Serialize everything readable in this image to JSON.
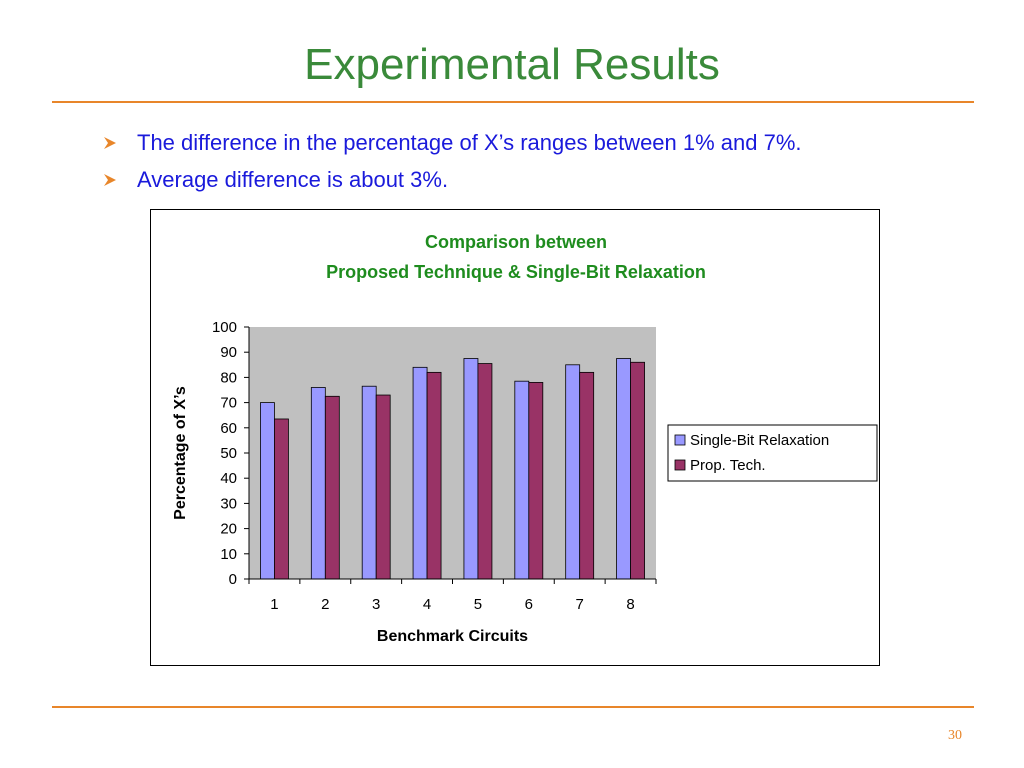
{
  "slide": {
    "title": "Experimental Results",
    "bullets": [
      "The difference in the percentage of X’s ranges between 1% and 7%.",
      "Average difference is about 3%."
    ],
    "page_number": "30",
    "colors": {
      "title": "#3a8a3a",
      "bullet_text": "#1a1adb",
      "rule": "#e8862a",
      "bullet_marker": "#e8862a"
    },
    "icons": {
      "bullet": "arrowhead-bullet-icon"
    }
  },
  "chart_data": {
    "type": "bar",
    "title_line1": "Comparison between",
    "title_line2": "Proposed Technique & Single-Bit Relaxation",
    "xlabel": "Benchmark Circuits",
    "ylabel": "Percentage of X’s",
    "categories": [
      "1",
      "2",
      "3",
      "4",
      "5",
      "6",
      "7",
      "8"
    ],
    "y_ticks": [
      "0",
      "10",
      "20",
      "30",
      "40",
      "50",
      "60",
      "70",
      "80",
      "90",
      "100"
    ],
    "ylim": [
      0,
      100
    ],
    "grid": false,
    "plot_background": "#c0c0c0",
    "legend_position": "right",
    "series": [
      {
        "name": "Single-Bit Relaxation",
        "color": "#9999ff",
        "values": [
          70,
          76,
          76.5,
          84,
          87.5,
          78.5,
          85,
          87.5
        ]
      },
      {
        "name": "Prop. Tech.",
        "color": "#993366",
        "values": [
          63.5,
          72.5,
          73,
          82,
          85.5,
          78,
          82,
          86
        ]
      }
    ]
  }
}
